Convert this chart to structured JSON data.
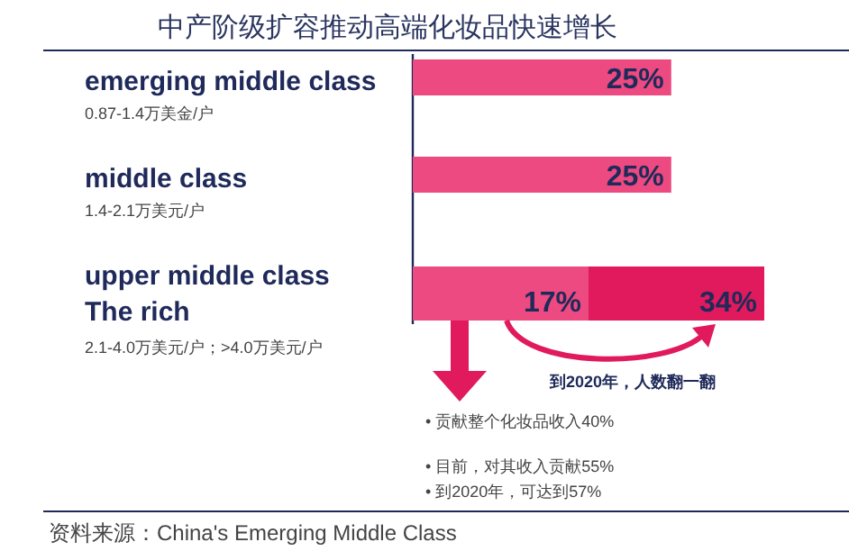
{
  "chart_data": {
    "type": "bar",
    "orientation": "horizontal",
    "title": "中产阶级扩容推动高端化妆品快速增长",
    "categories": [
      "emerging middle class",
      "middle class",
      "upper middle class\nThe rich"
    ],
    "series": [
      {
        "color": "#e01a5c",
        "values": [
          null,
          null,
          34
        ],
        "value_labels": [
          null,
          null,
          "34%"
        ]
      },
      {
        "color": "#ec4a80",
        "values": [
          25,
          25,
          17
        ],
        "value_labels": [
          "25%",
          "25%",
          "17%"
        ]
      }
    ],
    "annotations": [
      "0.87-1.4万美金/户",
      "1.4-2.1万美元/户",
      "2.1-4.0万美元/户；>4.0万美元/户",
      "到2020年，人数翻一翻",
      "•    贡献整个化妆品收入40%",
      "•    目前，对其收入贡献55%",
      "•    到2020年，可达到57%",
      "资料来源：China's Emerging Middle Class"
    ]
  }
}
